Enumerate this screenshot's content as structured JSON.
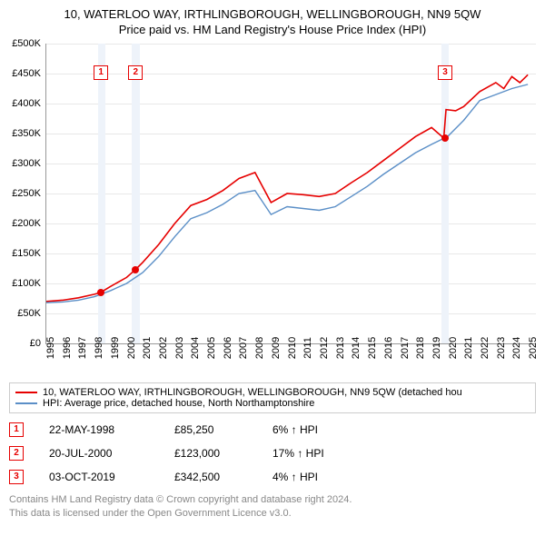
{
  "title_main": "10, WATERLOO WAY, IRTHLINGBOROUGH, WELLINGBOROUGH, NN9 5QW",
  "title_sub": "Price paid vs. HM Land Registry's House Price Index (HPI)",
  "chart": {
    "type": "line",
    "background_color": "#ffffff",
    "grid_color": "#e8e8e8",
    "band_color": "#eef3fa",
    "axis_color": "#999999",
    "x_years": [
      1995,
      1996,
      1997,
      1998,
      1999,
      2000,
      2001,
      2002,
      2003,
      2004,
      2005,
      2006,
      2007,
      2008,
      2009,
      2010,
      2011,
      2012,
      2013,
      2014,
      2015,
      2016,
      2017,
      2018,
      2019,
      2020,
      2021,
      2022,
      2023,
      2024,
      2025
    ],
    "x_min_year": 1995,
    "x_max_year": 2025.5,
    "ylim": [
      0,
      500000
    ],
    "ytick_step": 50000,
    "y_tick_labels": [
      "£0",
      "£50K",
      "£100K",
      "£150K",
      "£200K",
      "£250K",
      "£300K",
      "£350K",
      "£400K",
      "£450K",
      "£500K"
    ],
    "bands": [
      {
        "start": 1998.2,
        "end": 1998.7
      },
      {
        "start": 2000.3,
        "end": 2000.8
      },
      {
        "start": 2019.55,
        "end": 2020.05
      }
    ],
    "series": [
      {
        "name": "property",
        "color": "#e60000",
        "width": 1.6,
        "points": [
          [
            1995,
            70000
          ],
          [
            1996,
            72000
          ],
          [
            1997,
            76000
          ],
          [
            1998,
            82000
          ],
          [
            1998.4,
            85250
          ],
          [
            1999,
            95000
          ],
          [
            2000,
            110000
          ],
          [
            2000.55,
            123000
          ],
          [
            2001,
            135000
          ],
          [
            2002,
            165000
          ],
          [
            2003,
            200000
          ],
          [
            2004,
            230000
          ],
          [
            2005,
            240000
          ],
          [
            2006,
            255000
          ],
          [
            2007,
            275000
          ],
          [
            2008,
            285000
          ],
          [
            2008.5,
            260000
          ],
          [
            2009,
            235000
          ],
          [
            2010,
            250000
          ],
          [
            2011,
            248000
          ],
          [
            2012,
            245000
          ],
          [
            2013,
            250000
          ],
          [
            2014,
            268000
          ],
          [
            2015,
            285000
          ],
          [
            2016,
            305000
          ],
          [
            2017,
            325000
          ],
          [
            2018,
            345000
          ],
          [
            2019,
            360000
          ],
          [
            2019.76,
            342500
          ],
          [
            2019.9,
            390000
          ],
          [
            2020.5,
            388000
          ],
          [
            2021,
            395000
          ],
          [
            2022,
            420000
          ],
          [
            2023,
            435000
          ],
          [
            2023.5,
            425000
          ],
          [
            2024,
            445000
          ],
          [
            2024.5,
            435000
          ],
          [
            2025,
            448000
          ]
        ]
      },
      {
        "name": "hpi",
        "color": "#5b8fc7",
        "width": 1.4,
        "points": [
          [
            1995,
            68000
          ],
          [
            1996,
            69000
          ],
          [
            1997,
            72000
          ],
          [
            1998,
            78000
          ],
          [
            1999,
            88000
          ],
          [
            2000,
            100000
          ],
          [
            2001,
            118000
          ],
          [
            2002,
            145000
          ],
          [
            2003,
            178000
          ],
          [
            2004,
            208000
          ],
          [
            2005,
            218000
          ],
          [
            2006,
            232000
          ],
          [
            2007,
            250000
          ],
          [
            2008,
            255000
          ],
          [
            2008.5,
            235000
          ],
          [
            2009,
            215000
          ],
          [
            2010,
            228000
          ],
          [
            2011,
            225000
          ],
          [
            2012,
            222000
          ],
          [
            2013,
            228000
          ],
          [
            2014,
            245000
          ],
          [
            2015,
            262000
          ],
          [
            2016,
            282000
          ],
          [
            2017,
            300000
          ],
          [
            2018,
            318000
          ],
          [
            2019,
            332000
          ],
          [
            2020,
            345000
          ],
          [
            2021,
            372000
          ],
          [
            2022,
            405000
          ],
          [
            2023,
            415000
          ],
          [
            2024,
            425000
          ],
          [
            2025,
            432000
          ]
        ]
      }
    ],
    "markers": [
      {
        "n": "1",
        "year": 1998.4,
        "price": 85250,
        "box_top": 24
      },
      {
        "n": "2",
        "year": 2000.55,
        "price": 123000,
        "box_top": 24
      },
      {
        "n": "3",
        "year": 2019.8,
        "price": 342500,
        "box_top": 24
      }
    ]
  },
  "legend": [
    {
      "color": "#e60000",
      "label": "10, WATERLOO WAY, IRTHLINGBOROUGH, WELLINGBOROUGH, NN9 5QW (detached hou"
    },
    {
      "color": "#5b8fc7",
      "label": "HPI: Average price, detached house, North Northamptonshire"
    }
  ],
  "annotations": [
    {
      "n": "1",
      "date": "22-MAY-1998",
      "price": "£85,250",
      "pct": "6% ↑ HPI"
    },
    {
      "n": "2",
      "date": "20-JUL-2000",
      "price": "£123,000",
      "pct": "17% ↑ HPI"
    },
    {
      "n": "3",
      "date": "03-OCT-2019",
      "price": "£342,500",
      "pct": "4% ↑ HPI"
    }
  ],
  "footer_line1": "Contains HM Land Registry data © Crown copyright and database right 2024.",
  "footer_line2": "This data is licensed under the Open Government Licence v3.0."
}
